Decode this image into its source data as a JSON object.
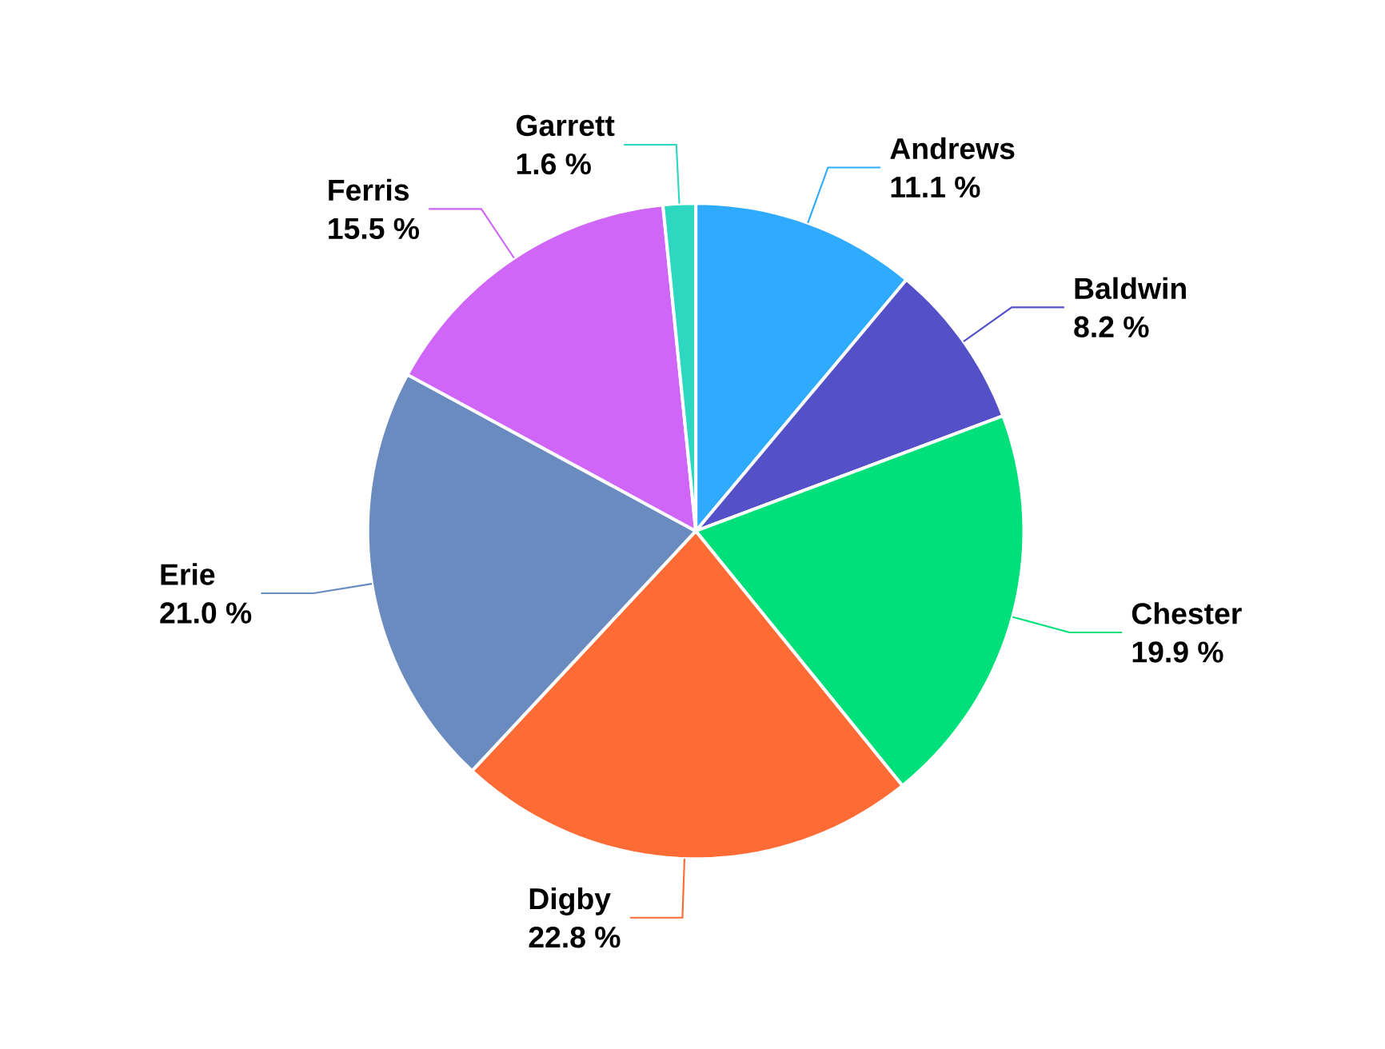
{
  "chart_data": {
    "type": "pie",
    "categories": [
      "Andrews",
      "Baldwin",
      "Chester",
      "Digby",
      "Erie",
      "Ferris",
      "Garrett"
    ],
    "values": [
      11.1,
      8.2,
      19.9,
      22.8,
      21.0,
      15.5,
      1.6
    ],
    "value_labels": [
      "11.1 %",
      "8.2 %",
      "19.9 %",
      "22.8 %",
      "21.0 %",
      "15.5 %",
      "1.6 %"
    ],
    "colors": [
      "#2eaaff",
      "#5350c8",
      "#00e07a",
      "#ff6b35",
      "#6a8bbf",
      "#d066f7",
      "#2ed8c0"
    ]
  }
}
